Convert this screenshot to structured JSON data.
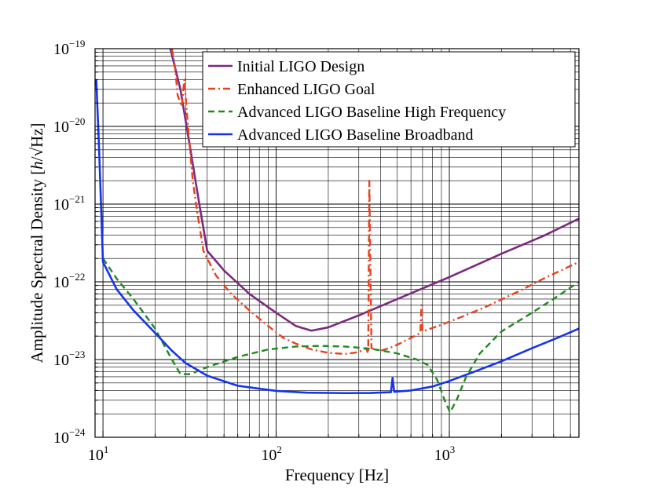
{
  "chart_data": {
    "type": "line",
    "xscale": "log",
    "yscale": "log",
    "xlim": [
      9,
      5600
    ],
    "ylim": [
      1e-24,
      1e-19
    ],
    "grid": true,
    "legend_position": "top-right",
    "xlabel": "Frequency [Hz]",
    "ylabel_parts": [
      "Amplitude Spectral Density [",
      "h",
      "/√Hz]"
    ],
    "x_ticks": [
      {
        "value": 10,
        "base": "10",
        "exp": "1"
      },
      {
        "value": 100,
        "base": "10",
        "exp": "2"
      },
      {
        "value": 1000,
        "base": "10",
        "exp": "3"
      }
    ],
    "y_ticks": [
      {
        "value": 1e-24,
        "base": "10",
        "exp": "−24"
      },
      {
        "value": 1e-23,
        "base": "10",
        "exp": "−23"
      },
      {
        "value": 1e-22,
        "base": "10",
        "exp": "−22"
      },
      {
        "value": 1e-21,
        "base": "10",
        "exp": "−21"
      },
      {
        "value": 1e-20,
        "base": "10",
        "exp": "−20"
      },
      {
        "value": 1e-19,
        "base": "10",
        "exp": "−19"
      }
    ],
    "series": [
      {
        "name": "Initial LIGO Design",
        "color": "#7b2a80",
        "dash": "solid",
        "points": [
          [
            24.5,
            1e-19
          ],
          [
            28,
            3e-20
          ],
          [
            32,
            5e-21
          ],
          [
            36,
            1e-21
          ],
          [
            40,
            2.5e-22
          ],
          [
            50,
            1.4e-22
          ],
          [
            70,
            7e-23
          ],
          [
            100,
            4e-23
          ],
          [
            130,
            2.7e-23
          ],
          [
            160,
            2.35e-23
          ],
          [
            200,
            2.6e-23
          ],
          [
            300,
            3.7e-23
          ],
          [
            500,
            6e-23
          ],
          [
            1000,
            1.15e-22
          ],
          [
            2000,
            2.3e-22
          ],
          [
            3500,
            3.9e-22
          ],
          [
            5600,
            6.5e-22
          ]
        ]
      },
      {
        "name": "Enhanced LIGO Goal",
        "color": "#e8411e",
        "dash": "dashdot",
        "points": [
          [
            25,
            1e-19
          ],
          [
            26,
            6e-20
          ],
          [
            27,
            2.5e-20
          ],
          [
            28.5,
            1.8e-20
          ],
          [
            29.5,
            4e-20
          ],
          [
            30.5,
            1.5e-20
          ],
          [
            33,
            2e-21
          ],
          [
            35,
            8e-22
          ],
          [
            38,
            2.5e-22
          ],
          [
            40,
            2e-22
          ],
          [
            45,
            1.2e-22
          ],
          [
            55,
            7e-23
          ],
          [
            70,
            4.3e-23
          ],
          [
            90,
            2.7e-23
          ],
          [
            110,
            1.9e-23
          ],
          [
            130,
            1.6e-23
          ],
          [
            160,
            1.35e-23
          ],
          [
            200,
            1.22e-23
          ],
          [
            250,
            1.18e-23
          ],
          [
            300,
            1.25e-23
          ],
          [
            330,
            1.4e-23
          ],
          [
            340,
            1.2e-23
          ],
          [
            345,
            2e-21
          ],
          [
            350,
            1.5e-22
          ],
          [
            355,
            1.4e-23
          ],
          [
            400,
            1.3e-23
          ],
          [
            450,
            1.4e-23
          ],
          [
            500,
            1.55e-23
          ],
          [
            600,
            1.9e-23
          ],
          [
            680,
            2.2e-23
          ],
          [
            690,
            5e-23
          ],
          [
            700,
            2.3e-23
          ],
          [
            900,
            2.8e-23
          ],
          [
            1200,
            3.6e-23
          ],
          [
            1600,
            4.7e-23
          ],
          [
            2500,
            7.5e-23
          ],
          [
            3500,
            1.1e-22
          ],
          [
            5600,
            1.8e-22
          ]
        ]
      },
      {
        "name": "Advanced LIGO Baseline High Frequency",
        "color": "#1f8a1f",
        "dash": "dashed",
        "points": [
          [
            10,
            2e-22
          ],
          [
            12,
            1.1e-22
          ],
          [
            15,
            6e-23
          ],
          [
            20,
            2.5e-23
          ],
          [
            25,
            1e-23
          ],
          [
            28,
            6.5e-24
          ],
          [
            32,
            6.5e-24
          ],
          [
            40,
            8e-24
          ],
          [
            60,
            1.08e-23
          ],
          [
            90,
            1.35e-23
          ],
          [
            130,
            1.47e-23
          ],
          [
            180,
            1.5e-23
          ],
          [
            250,
            1.47e-23
          ],
          [
            350,
            1.38e-23
          ],
          [
            500,
            1.2e-23
          ],
          [
            650,
            1e-23
          ],
          [
            750,
            8.5e-24
          ],
          [
            850,
            5.5e-24
          ],
          [
            950,
            2.8e-24
          ],
          [
            1010,
            2.1e-24
          ],
          [
            1100,
            3e-24
          ],
          [
            1250,
            6e-24
          ],
          [
            1500,
            1.2e-23
          ],
          [
            2000,
            2.3e-23
          ],
          [
            3000,
            4e-23
          ],
          [
            4200,
            6.5e-23
          ],
          [
            5600,
            1e-22
          ]
        ]
      },
      {
        "name": "Advanced LIGO Baseline Broadband",
        "color": "#1533ee",
        "dash": "solid",
        "points": [
          [
            9.15,
            4e-20
          ],
          [
            9.5,
            5e-21
          ],
          [
            10,
            1.8e-22
          ],
          [
            12,
            8e-23
          ],
          [
            15,
            4.3e-23
          ],
          [
            20,
            2.2e-23
          ],
          [
            25,
            1.3e-23
          ],
          [
            30,
            9e-24
          ],
          [
            40,
            6.2e-24
          ],
          [
            60,
            4.6e-24
          ],
          [
            100,
            3.95e-24
          ],
          [
            150,
            3.75e-24
          ],
          [
            250,
            3.7e-24
          ],
          [
            350,
            3.72e-24
          ],
          [
            460,
            3.8e-24
          ],
          [
            470,
            5.8e-24
          ],
          [
            480,
            3.85e-24
          ],
          [
            600,
            4e-24
          ],
          [
            800,
            4.5e-24
          ],
          [
            1000,
            5.3e-24
          ],
          [
            1400,
            7e-24
          ],
          [
            2000,
            9.5e-24
          ],
          [
            3000,
            1.4e-23
          ],
          [
            4200,
            1.9e-23
          ],
          [
            5600,
            2.5e-23
          ]
        ]
      }
    ]
  }
}
